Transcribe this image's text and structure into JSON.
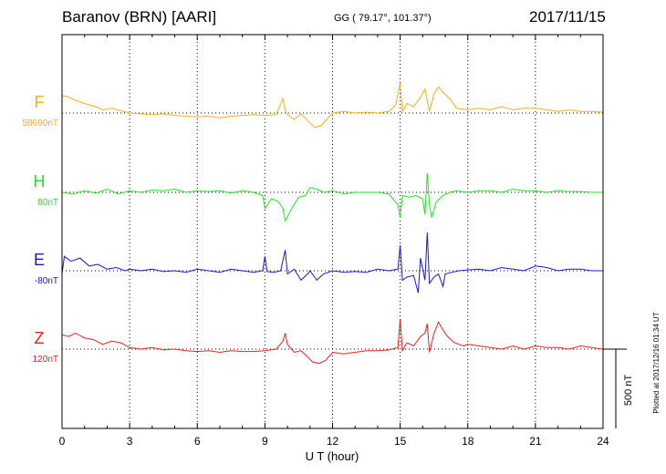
{
  "header": {
    "station": "Baranov (BRN)  [AARI]",
    "coords": "GG ( 79.17°, 101.37°)",
    "date": "2017/11/15"
  },
  "plotted_note": "Plotted at 2017/12/16 01:34 UT",
  "chart_data": {
    "type": "line",
    "title": "Baranov (BRN)  [AARI]",
    "xlabel": "U T (hour)",
    "xlim": [
      0,
      24
    ],
    "x_ticks": [
      "0",
      "3",
      "6",
      "9",
      "12",
      "15",
      "18",
      "21",
      "24"
    ],
    "grid": true,
    "scale_bar_label": "500 nT",
    "scale_bar_nT": 500,
    "series": [
      {
        "name": "F",
        "baseline_label": "58690nT",
        "color": "#f0b020",
        "x": [
          0,
          0.3,
          0.6,
          1.0,
          1.5,
          1.8,
          2.2,
          2.6,
          3.0,
          3.5,
          4.0,
          4.5,
          5.0,
          5.5,
          6.0,
          6.5,
          7.0,
          7.5,
          8.0,
          8.5,
          9.0,
          9.5,
          9.8,
          9.9,
          10.0,
          10.3,
          10.6,
          10.9,
          11.2,
          11.5,
          11.8,
          12.0,
          12.5,
          13.0,
          13.5,
          14.0,
          14.5,
          14.8,
          15.0,
          15.1,
          15.3,
          15.6,
          15.9,
          16.1,
          16.2,
          16.3,
          16.5,
          16.7,
          16.9,
          17.2,
          17.5,
          18.0,
          18.5,
          19.0,
          19.5,
          20.0,
          20.5,
          21.0,
          21.5,
          22.0,
          22.5,
          23.0,
          23.5,
          24.0
        ],
        "y": [
          110,
          100,
          80,
          60,
          40,
          20,
          30,
          15,
          0,
          -5,
          -10,
          -5,
          -15,
          -20,
          -25,
          -20,
          -30,
          -20,
          -15,
          -10,
          -15,
          -10,
          90,
          20,
          -10,
          -40,
          -5,
          -50,
          -90,
          -80,
          -30,
          0,
          10,
          0,
          5,
          0,
          10,
          50,
          190,
          10,
          60,
          40,
          100,
          150,
          80,
          10,
          120,
          165,
          130,
          90,
          30,
          20,
          30,
          20,
          40,
          20,
          30,
          30,
          20,
          10,
          20,
          10,
          10,
          5
        ]
      },
      {
        "name": "H",
        "baseline_label": "80nT",
        "color": "#28e028",
        "x": [
          0,
          0.5,
          1.0,
          1.5,
          2.0,
          2.5,
          3.0,
          3.5,
          4.0,
          4.5,
          5.0,
          5.5,
          6.0,
          6.5,
          7.0,
          7.5,
          8.0,
          8.5,
          8.9,
          9.0,
          9.3,
          9.6,
          9.8,
          9.9,
          10.2,
          10.5,
          10.8,
          11.0,
          11.3,
          11.6,
          12.0,
          12.5,
          13.0,
          13.5,
          14.0,
          14.5,
          14.9,
          15.0,
          15.1,
          15.4,
          15.7,
          16.0,
          16.1,
          16.2,
          16.3,
          16.4,
          16.6,
          16.9,
          17.2,
          17.5,
          18.0,
          18.5,
          19.0,
          19.5,
          20.0,
          20.5,
          21.0,
          21.5,
          22.0,
          22.5,
          23.0,
          23.5,
          24.0
        ],
        "y": [
          0,
          -10,
          10,
          -5,
          20,
          -10,
          10,
          0,
          15,
          10,
          20,
          0,
          10,
          5,
          10,
          -5,
          10,
          0,
          -20,
          -100,
          -40,
          -60,
          -100,
          -180,
          -100,
          -30,
          -20,
          30,
          20,
          0,
          10,
          -10,
          0,
          0,
          0,
          -10,
          -80,
          -160,
          -20,
          -30,
          -20,
          -40,
          -140,
          120,
          -80,
          -160,
          -60,
          -20,
          0,
          10,
          0,
          10,
          10,
          0,
          20,
          10,
          10,
          0,
          10,
          5,
          5,
          0,
          0
        ]
      },
      {
        "name": "E",
        "baseline_label": "-80nT",
        "color": "#1818d0",
        "x": [
          0,
          0.1,
          0.4,
          0.8,
          1.2,
          1.6,
          2.0,
          2.4,
          2.8,
          3.0,
          3.5,
          4.0,
          4.5,
          5.0,
          5.5,
          6.0,
          6.5,
          7.0,
          7.5,
          8.0,
          8.5,
          8.9,
          9.0,
          9.1,
          9.4,
          9.7,
          9.9,
          10.0,
          10.3,
          10.6,
          10.9,
          11.0,
          11.3,
          11.6,
          12.0,
          12.5,
          13.0,
          13.5,
          14.0,
          14.5,
          14.9,
          15.0,
          15.1,
          15.3,
          15.6,
          15.8,
          15.9,
          16.1,
          16.2,
          16.3,
          16.5,
          16.7,
          16.9,
          17.0,
          17.3,
          17.6,
          18.0,
          18.5,
          19.0,
          19.5,
          20.0,
          20.5,
          21.0,
          21.5,
          22.0,
          22.5,
          23.0,
          23.5,
          24.0
        ],
        "y": [
          -20,
          90,
          60,
          80,
          30,
          40,
          10,
          20,
          0,
          10,
          0,
          10,
          -5,
          0,
          -10,
          10,
          0,
          -10,
          10,
          0,
          -10,
          0,
          90,
          -5,
          -10,
          0,
          130,
          -20,
          10,
          -60,
          -20,
          0,
          -60,
          -20,
          0,
          -10,
          -5,
          -10,
          10,
          0,
          10,
          160,
          -60,
          -40,
          -30,
          -140,
          80,
          -60,
          240,
          -80,
          -40,
          -20,
          -100,
          -20,
          -10,
          0,
          5,
          10,
          0,
          20,
          10,
          0,
          30,
          20,
          0,
          10,
          10,
          0,
          0
        ]
      },
      {
        "name": "Z",
        "baseline_label": "120nT",
        "color": "#e82020",
        "x": [
          0,
          0.3,
          0.6,
          1.0,
          1.4,
          1.8,
          2.2,
          2.6,
          3.0,
          3.5,
          4.0,
          4.5,
          5.0,
          5.5,
          6.0,
          6.5,
          7.0,
          7.5,
          8.0,
          8.5,
          9.0,
          9.5,
          9.8,
          9.9,
          10.0,
          10.3,
          10.6,
          10.9,
          11.1,
          11.4,
          11.7,
          12.0,
          12.5,
          13.0,
          13.5,
          14.0,
          14.5,
          14.9,
          15.0,
          15.1,
          15.3,
          15.6,
          15.9,
          16.1,
          16.2,
          16.3,
          16.5,
          16.7,
          16.9,
          17.1,
          17.4,
          17.8,
          18.0,
          18.5,
          19.0,
          19.5,
          20.0,
          20.5,
          21.0,
          21.5,
          22.0,
          22.5,
          23.0,
          23.5,
          24.0
        ],
        "y": [
          90,
          80,
          100,
          70,
          60,
          30,
          50,
          40,
          10,
          0,
          10,
          -5,
          0,
          -10,
          -15,
          -10,
          -20,
          -10,
          -15,
          -15,
          -10,
          0,
          50,
          100,
          30,
          -20,
          -10,
          -50,
          -80,
          -90,
          -70,
          -20,
          -30,
          -20,
          -10,
          -10,
          -5,
          10,
          190,
          -10,
          40,
          20,
          80,
          100,
          160,
          -20,
          100,
          170,
          120,
          80,
          40,
          20,
          30,
          20,
          10,
          0,
          20,
          0,
          20,
          10,
          10,
          0,
          20,
          10,
          0
        ]
      }
    ]
  }
}
